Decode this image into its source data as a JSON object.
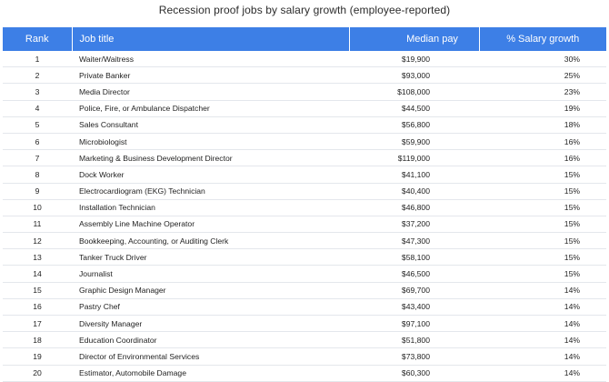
{
  "title": "Recession proof jobs by salary growth (employee-reported)",
  "headers": {
    "rank": "Rank",
    "job": "Job title",
    "pay": "Median pay",
    "growth": "% Salary growth"
  },
  "rows": [
    {
      "rank": "1",
      "job": "Waiter/Waitress",
      "pay": "$19,900",
      "growth": "30%"
    },
    {
      "rank": "2",
      "job": "Private Banker",
      "pay": "$93,000",
      "growth": "25%"
    },
    {
      "rank": "3",
      "job": "Media Director",
      "pay": "$108,000",
      "growth": "23%"
    },
    {
      "rank": "4",
      "job": "Police, Fire, or Ambulance Dispatcher",
      "pay": "$44,500",
      "growth": "19%"
    },
    {
      "rank": "5",
      "job": "Sales Consultant",
      "pay": "$56,800",
      "growth": "18%"
    },
    {
      "rank": "6",
      "job": "Microbiologist",
      "pay": "$59,900",
      "growth": "16%"
    },
    {
      "rank": "7",
      "job": "Marketing & Business Development Director",
      "pay": "$119,000",
      "growth": "16%"
    },
    {
      "rank": "8",
      "job": "Dock Worker",
      "pay": "$41,100",
      "growth": "15%"
    },
    {
      "rank": "9",
      "job": "Electrocardiogram (EKG) Technician",
      "pay": "$40,400",
      "growth": "15%"
    },
    {
      "rank": "10",
      "job": "Installation Technician",
      "pay": "$46,800",
      "growth": "15%"
    },
    {
      "rank": "11",
      "job": "Assembly Line Machine Operator",
      "pay": "$37,200",
      "growth": "15%"
    },
    {
      "rank": "12",
      "job": "Bookkeeping, Accounting, or Auditing Clerk",
      "pay": "$47,300",
      "growth": "15%"
    },
    {
      "rank": "13",
      "job": "Tanker Truck Driver",
      "pay": "$58,100",
      "growth": "15%"
    },
    {
      "rank": "14",
      "job": "Journalist",
      "pay": "$46,500",
      "growth": "15%"
    },
    {
      "rank": "15",
      "job": "Graphic Design Manager",
      "pay": "$69,700",
      "growth": "14%"
    },
    {
      "rank": "16",
      "job": "Pastry Chef",
      "pay": "$43,400",
      "growth": "14%"
    },
    {
      "rank": "17",
      "job": "Diversity Manager",
      "pay": "$97,100",
      "growth": "14%"
    },
    {
      "rank": "18",
      "job": "Education Coordinator",
      "pay": "$51,800",
      "growth": "14%"
    },
    {
      "rank": "19",
      "job": "Director of Environmental Services",
      "pay": "$73,800",
      "growth": "14%"
    },
    {
      "rank": "20",
      "job": "Estimator, Automobile Damage",
      "pay": "$60,300",
      "growth": "14%"
    }
  ],
  "colors": {
    "header_bg": "#3d7fe6",
    "header_text": "#ffffff",
    "row_divider": "#e4e7ec"
  }
}
